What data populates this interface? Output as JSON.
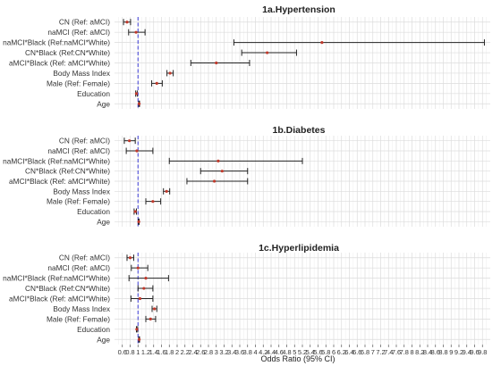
{
  "chart_data": {
    "type": "forest",
    "xlabel": "Odds Ratio (95% CI)",
    "xlim": [
      0.4,
      10.0
    ],
    "xticks": [
      "0.6",
      "0.8",
      "1",
      "1.2",
      "1.4",
      "1.6",
      "1.8",
      "2",
      "2.2",
      "2.4",
      "2.6",
      "2.8",
      "3",
      "3.2",
      "3.4",
      "3.6",
      "3.8",
      "4",
      "4.2",
      "4.4",
      "4.6",
      "4.8",
      "5",
      "5.2",
      "5.4",
      "5.6",
      "5.8",
      "6",
      "6.2",
      "6.4",
      "6.6",
      "6.8",
      "7",
      "7.2",
      "7.4",
      "7.6",
      "7.8",
      "8",
      "8.2",
      "8.4",
      "8.6",
      "8.8",
      "9",
      "9.2",
      "9.4",
      "9.6",
      "9.8"
    ],
    "reference_line": 1.0,
    "grid": true,
    "colors": {
      "point": "#c0392b",
      "ci": "#222222",
      "reference": "#3b3bd6"
    },
    "panels": [
      {
        "title": "1a.Hypertension",
        "rows": [
          {
            "label": "CN (Ref: aMCI)",
            "or": 0.72,
            "lo": 0.63,
            "hi": 0.81
          },
          {
            "label": "naMCI (Ref: aMCI)",
            "or": 0.95,
            "lo": 0.76,
            "hi": 1.18
          },
          {
            "label": "naMCI*Black (Ref:naMCI*White)",
            "or": 5.7,
            "lo": 3.45,
            "hi": 9.85
          },
          {
            "label": "CN*Black (Ref:CN*White)",
            "or": 4.3,
            "lo": 3.65,
            "hi": 5.05
          },
          {
            "label": "aMCI*Black (Ref: aMCI*White)",
            "or": 3.0,
            "lo": 2.35,
            "hi": 3.85
          },
          {
            "label": "Body Mass Index",
            "or": 1.82,
            "lo": 1.74,
            "hi": 1.9
          },
          {
            "label": "Male (Ref: Female)",
            "or": 1.48,
            "lo": 1.35,
            "hi": 1.62
          },
          {
            "label": "Education",
            "or": 0.96,
            "lo": 0.94,
            "hi": 0.98
          },
          {
            "label": "Age",
            "or": 1.03,
            "lo": 1.02,
            "hi": 1.04
          }
        ]
      },
      {
        "title": "1b.Diabetes",
        "rows": [
          {
            "label": "CN (Ref: aMCI)",
            "or": 0.78,
            "lo": 0.65,
            "hi": 0.93
          },
          {
            "label": "naMCI (Ref: aMCI)",
            "or": 0.97,
            "lo": 0.7,
            "hi": 1.38
          },
          {
            "label": "naMCI*Black (Ref:naMCI*White)",
            "or": 3.05,
            "lo": 1.8,
            "hi": 5.2
          },
          {
            "label": "CN*Black (Ref:CN*White)",
            "or": 3.15,
            "lo": 2.6,
            "hi": 3.8
          },
          {
            "label": "aMCI*Black (Ref: aMCI*White)",
            "or": 2.95,
            "lo": 2.25,
            "hi": 3.8
          },
          {
            "label": "Body Mass Index",
            "or": 1.73,
            "lo": 1.65,
            "hi": 1.81
          },
          {
            "label": "Male (Ref: Female)",
            "or": 1.38,
            "lo": 1.2,
            "hi": 1.58
          },
          {
            "label": "Education",
            "or": 0.93,
            "lo": 0.9,
            "hi": 0.96
          },
          {
            "label": "Age",
            "or": 1.02,
            "lo": 1.01,
            "hi": 1.03
          }
        ]
      },
      {
        "title": "1c.Hyperlipidemia",
        "rows": [
          {
            "label": "CN (Ref: aMCI)",
            "or": 0.8,
            "lo": 0.72,
            "hi": 0.89
          },
          {
            "label": "naMCI (Ref: aMCI)",
            "or": 1.0,
            "lo": 0.83,
            "hi": 1.25
          },
          {
            "label": "naMCI*Black (Ref:naMCI*White)",
            "or": 1.2,
            "lo": 0.77,
            "hi": 1.78
          },
          {
            "label": "CN*Black (Ref:CN*White)",
            "or": 1.15,
            "lo": 1.0,
            "hi": 1.38
          },
          {
            "label": "aMCI*Black (Ref: aMCI*White)",
            "or": 1.05,
            "lo": 0.82,
            "hi": 1.38
          },
          {
            "label": "Body Mass Index",
            "or": 1.42,
            "lo": 1.36,
            "hi": 1.48
          },
          {
            "label": "Male (Ref: Female)",
            "or": 1.32,
            "lo": 1.2,
            "hi": 1.45
          },
          {
            "label": "Education",
            "or": 0.97,
            "lo": 0.96,
            "hi": 0.99
          },
          {
            "label": "Age",
            "or": 1.03,
            "lo": 1.02,
            "hi": 1.04
          }
        ]
      }
    ]
  }
}
